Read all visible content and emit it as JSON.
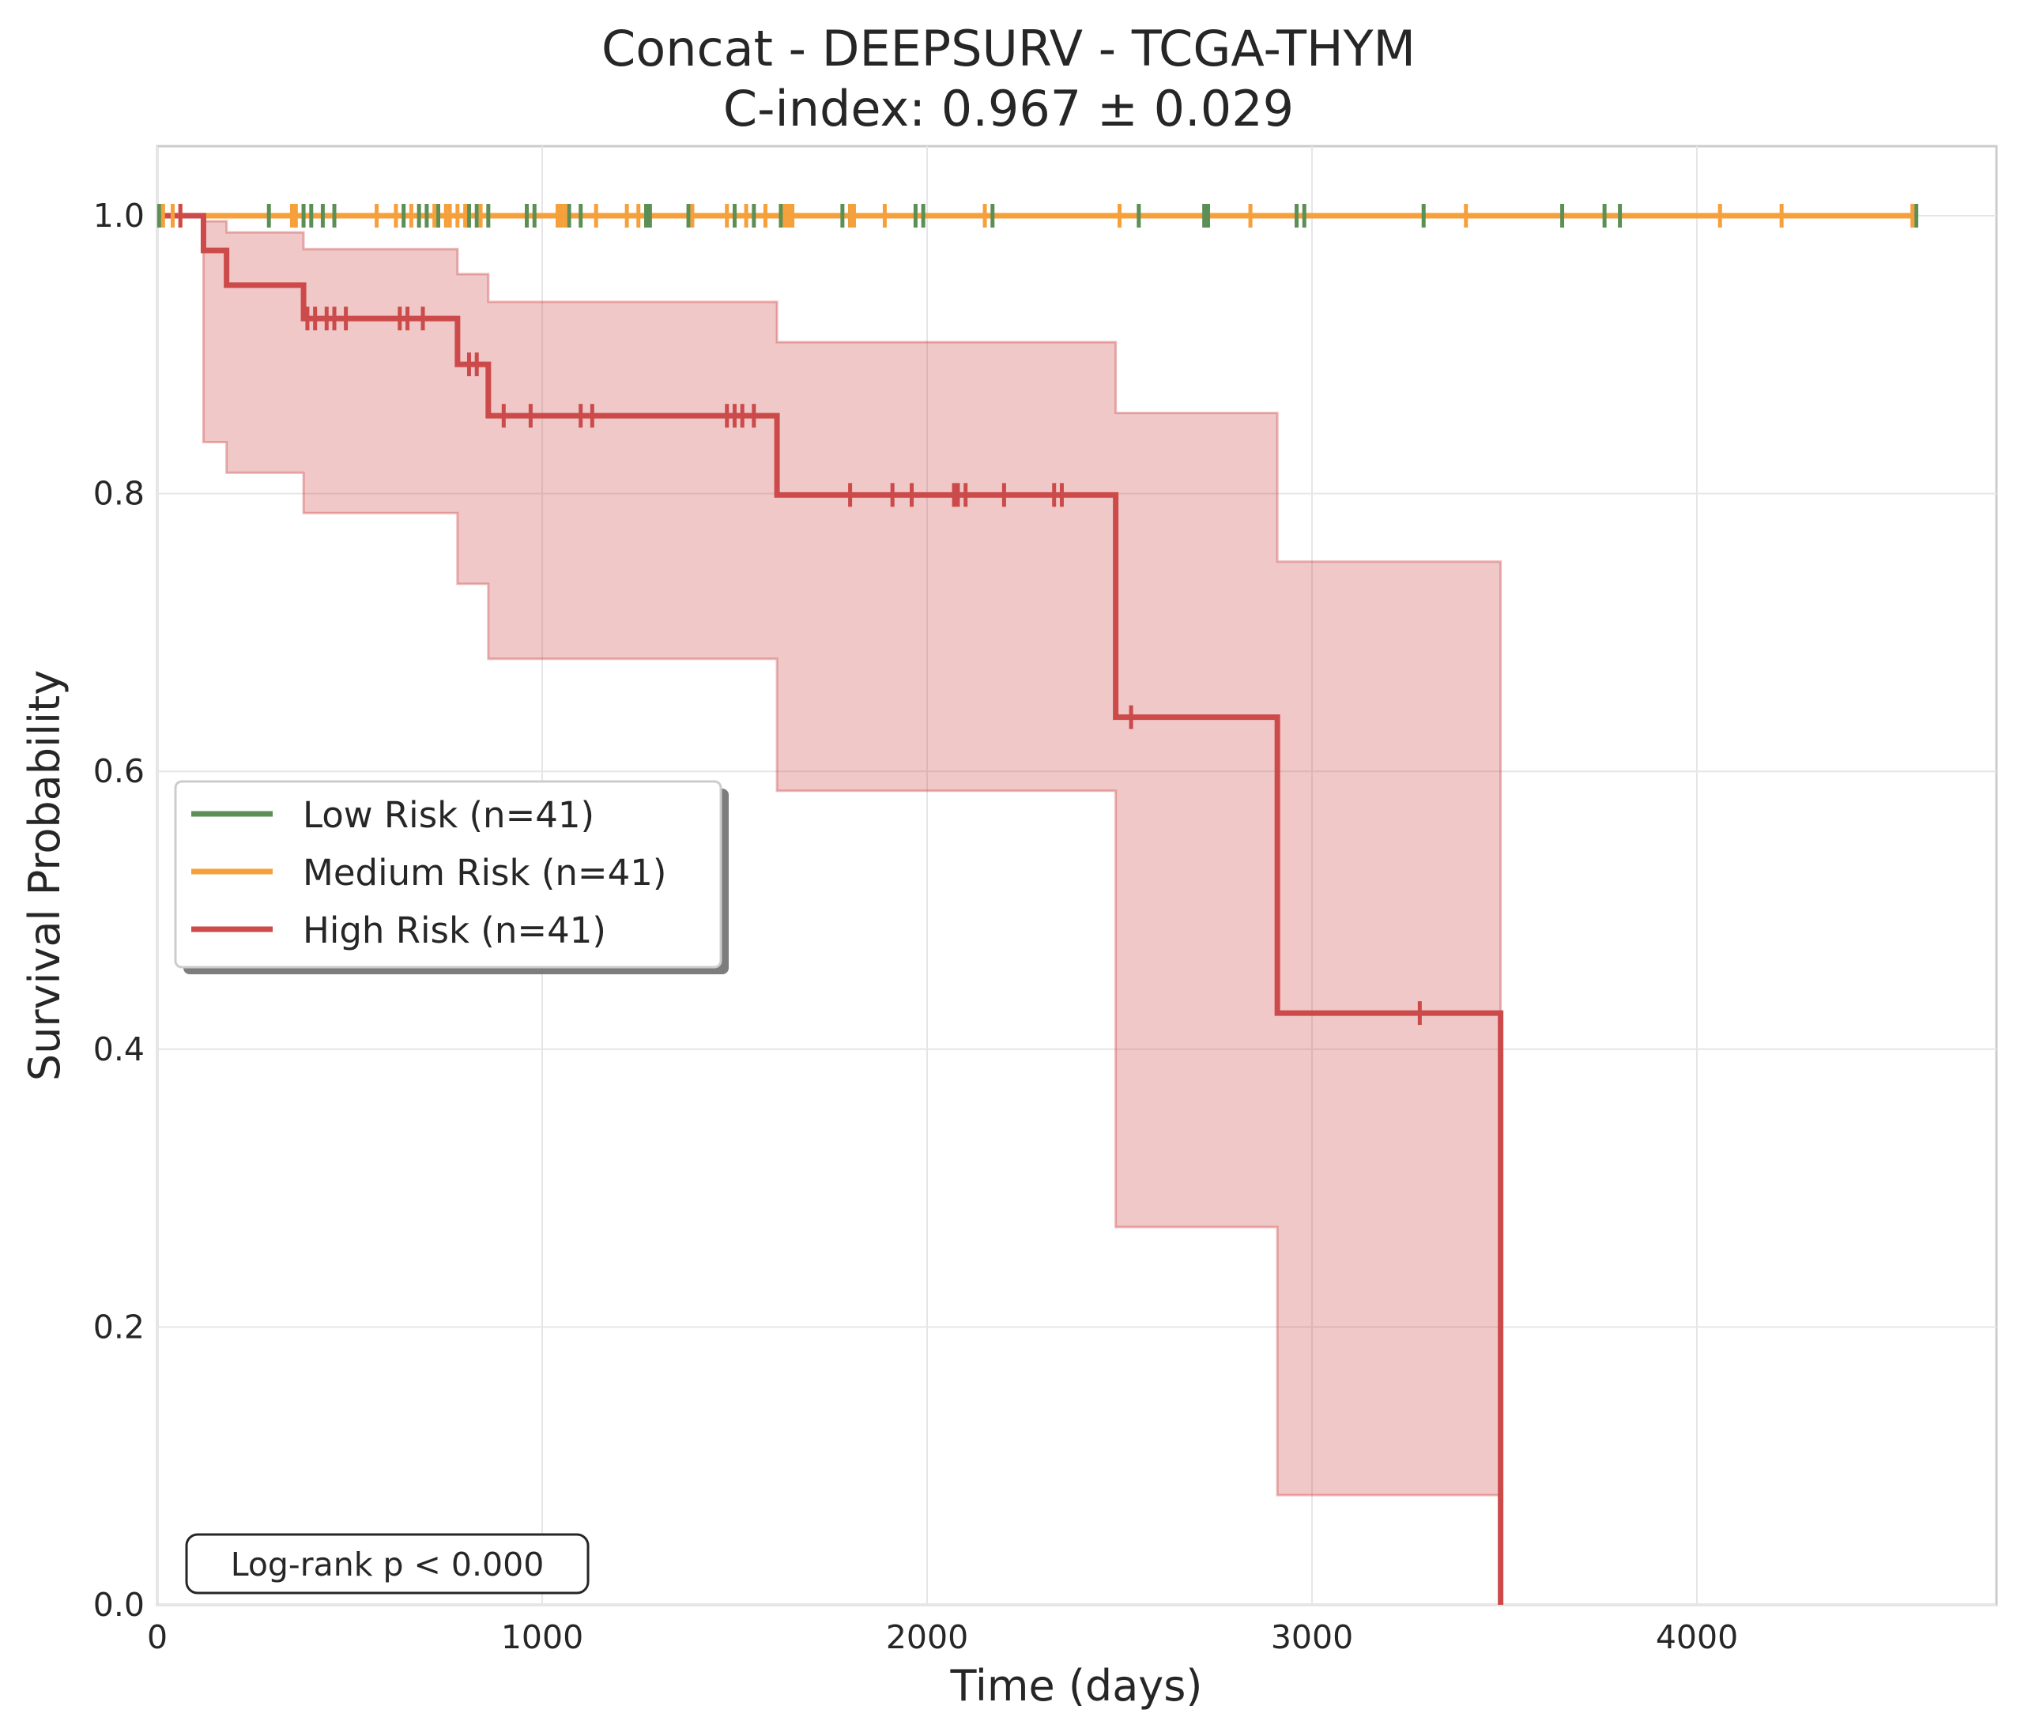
{
  "chart_data": {
    "type": "line",
    "subtype": "kaplan-meier",
    "title": "Concat - DEEPSURV - TCGA-THYM",
    "subtitle": "C-index: 0.967 ± 0.029",
    "xlabel": "Time (days)",
    "ylabel": "Survival Probability",
    "xlim": [
      0,
      4800
    ],
    "ylim": [
      0,
      1.05
    ],
    "xticks": [
      0,
      1000,
      2000,
      3000,
      4000
    ],
    "xtick_labels": [
      "0",
      "1000",
      "2000",
      "3000",
      "4000"
    ],
    "yticks": [
      0.0,
      0.2,
      0.4,
      0.6,
      0.8,
      1.0
    ],
    "ytick_labels": [
      "0.0",
      "0.2",
      "0.4",
      "0.6",
      "0.8",
      "1.0"
    ],
    "grid": true,
    "legend_position": "center-left",
    "annotation": "Log-rank p < 0.000",
    "series": [
      {
        "name": "Low Risk (n=41)",
        "color": "#5b8f55",
        "steps": [
          [
            0,
            1.0
          ],
          [
            4570,
            1.0
          ]
        ],
        "censor_times": [
          5,
          290,
          380,
          400,
          430,
          460,
          640,
          680,
          700,
          730,
          810,
          830,
          860,
          960,
          980,
          1070,
          1100,
          1270,
          1280,
          1380,
          1500,
          1550,
          1620,
          1780,
          1800,
          1970,
          1990,
          2170,
          2550,
          2720,
          2730,
          2960,
          2980,
          3290,
          3650,
          3760,
          3800,
          4570
        ]
      },
      {
        "name": "Medium Risk (n=41)",
        "color": "#f5a03a",
        "steps": [
          [
            0,
            1.0
          ],
          [
            4560,
            1.0
          ]
        ],
        "censor_times": [
          15,
          40,
          60,
          350,
          360,
          570,
          620,
          660,
          720,
          750,
          760,
          780,
          800,
          840,
          1040,
          1050,
          1060,
          1140,
          1220,
          1250,
          1390,
          1480,
          1530,
          1580,
          1630,
          1640,
          1650,
          1800,
          1810,
          1890,
          2150,
          2500,
          2840,
          3400,
          4060,
          4220,
          4560
        ]
      },
      {
        "name": "High Risk (n=41)",
        "color": "#cc4a4a",
        "steps": [
          [
            0,
            1.0
          ],
          [
            120,
            0.975
          ],
          [
            180,
            0.95
          ],
          [
            380,
            0.926
          ],
          [
            780,
            0.893
          ],
          [
            860,
            0.856
          ],
          [
            1610,
            0.799
          ],
          [
            2490,
            0.639
          ],
          [
            2910,
            0.426
          ],
          [
            3490,
            0.0
          ]
        ],
        "ci_steps": [
          [
            0,
            1.0,
            1.0
          ],
          [
            120,
            0.837,
            0.996
          ],
          [
            180,
            0.815,
            0.988
          ],
          [
            380,
            0.786,
            0.976
          ],
          [
            780,
            0.735,
            0.958
          ],
          [
            860,
            0.681,
            0.938
          ],
          [
            1610,
            0.586,
            0.909
          ],
          [
            2490,
            0.272,
            0.858
          ],
          [
            2910,
            0.079,
            0.751
          ],
          [
            3490,
            0.079,
            0.751
          ]
        ],
        "censor_times": [
          60,
          390,
          410,
          440,
          460,
          490,
          630,
          650,
          690,
          810,
          830,
          900,
          970,
          1100,
          1130,
          1480,
          1500,
          1520,
          1550,
          1800,
          1910,
          1960,
          2070,
          2080,
          2100,
          2200,
          2330,
          2350,
          2530,
          3280
        ]
      }
    ]
  }
}
